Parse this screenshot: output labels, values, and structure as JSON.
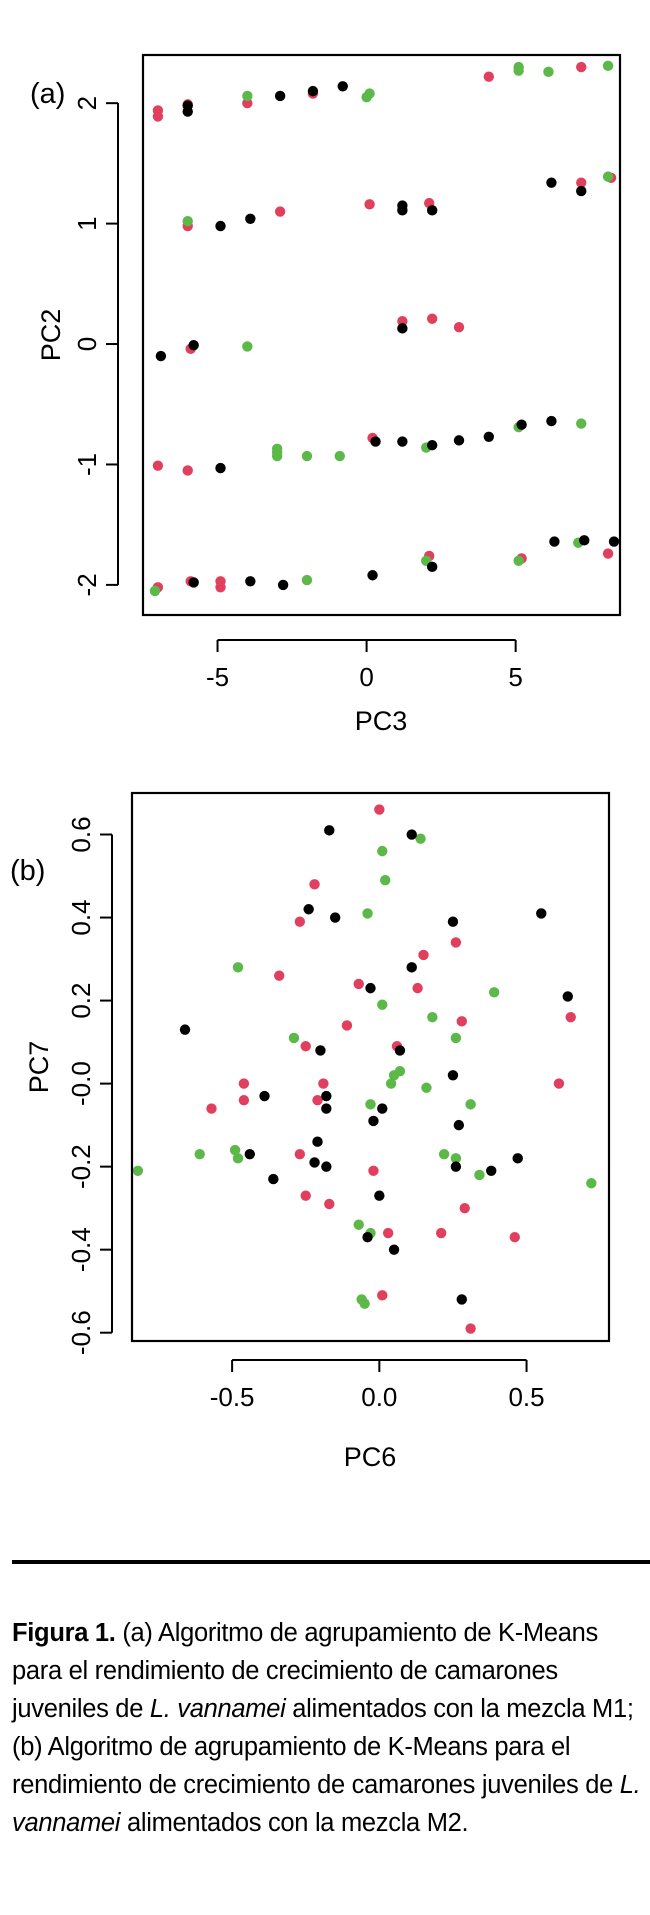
{
  "colors": {
    "cluster1": "#e0405e",
    "cluster2": "#5cb848",
    "cluster3": "#000000"
  },
  "chart_data": [
    {
      "type": "scatter",
      "panel_label": "(a)",
      "title": "",
      "xlabel": "PC3",
      "ylabel": "PC2",
      "xlim": [
        -7.5,
        8.5
      ],
      "ylim": [
        -2.25,
        2.4
      ],
      "xticks": [
        -5,
        0,
        5
      ],
      "xtick_labels": [
        "-5",
        "0",
        "5"
      ],
      "yticks": [
        -2,
        -1,
        0,
        1,
        2
      ],
      "ytick_labels": [
        "-2",
        "-1",
        "0",
        "1",
        "2"
      ],
      "grid": false,
      "legend": "none",
      "series": [
        {
          "name": "cluster-red",
          "color": "#e0405e",
          "points": [
            [
              -7.0,
              1.94
            ],
            [
              -7.0,
              1.89
            ],
            [
              -6.0,
              1.99
            ],
            [
              -4.0,
              2.0
            ],
            [
              -1.8,
              2.08
            ],
            [
              4.1,
              2.22
            ],
            [
              7.2,
              2.3
            ],
            [
              -6.0,
              0.98
            ],
            [
              -2.9,
              1.1
            ],
            [
              0.1,
              1.16
            ],
            [
              2.1,
              1.17
            ],
            [
              8.2,
              1.38
            ],
            [
              7.2,
              1.34
            ],
            [
              1.2,
              0.19
            ],
            [
              2.2,
              0.21
            ],
            [
              3.1,
              0.14
            ],
            [
              -5.9,
              -0.04
            ],
            [
              -7.0,
              -1.01
            ],
            [
              -6.0,
              -1.05
            ],
            [
              0.2,
              -0.78
            ],
            [
              -5.9,
              -1.97
            ],
            [
              -4.9,
              -1.97
            ],
            [
              -4.9,
              -2.02
            ],
            [
              -7.0,
              -2.02
            ],
            [
              2.1,
              -1.76
            ],
            [
              5.2,
              -1.78
            ],
            [
              8.1,
              -1.74
            ]
          ]
        },
        {
          "name": "cluster-green",
          "color": "#5cb848",
          "points": [
            [
              -4.0,
              2.06
            ],
            [
              0.1,
              2.08
            ],
            [
              0.0,
              2.05
            ],
            [
              5.1,
              2.3
            ],
            [
              5.1,
              2.27
            ],
            [
              6.1,
              2.26
            ],
            [
              8.1,
              2.31
            ],
            [
              -6.0,
              1.02
            ],
            [
              8.1,
              1.39
            ],
            [
              -4.0,
              -0.02
            ],
            [
              -3.0,
              -0.87
            ],
            [
              -3.0,
              -0.9
            ],
            [
              -3.0,
              -0.93
            ],
            [
              -2.0,
              -0.93
            ],
            [
              -0.9,
              -0.93
            ],
            [
              2.0,
              -0.86
            ],
            [
              5.1,
              -0.69
            ],
            [
              7.2,
              -0.66
            ],
            [
              -7.1,
              -2.05
            ],
            [
              -2.0,
              -1.96
            ],
            [
              2.0,
              -1.8
            ],
            [
              5.1,
              -1.8
            ],
            [
              7.1,
              -1.65
            ]
          ]
        },
        {
          "name": "cluster-black",
          "color": "#000000",
          "points": [
            [
              -6.0,
              1.98
            ],
            [
              -6.0,
              1.93
            ],
            [
              -2.9,
              2.06
            ],
            [
              -1.8,
              2.1
            ],
            [
              -0.8,
              2.14
            ],
            [
              -4.9,
              0.98
            ],
            [
              -3.9,
              1.04
            ],
            [
              1.2,
              1.15
            ],
            [
              1.2,
              1.11
            ],
            [
              2.2,
              1.11
            ],
            [
              6.2,
              1.34
            ],
            [
              7.2,
              1.27
            ],
            [
              -6.9,
              -0.1
            ],
            [
              -5.8,
              -0.01
            ],
            [
              1.2,
              0.13
            ],
            [
              -4.9,
              -1.03
            ],
            [
              0.3,
              -0.81
            ],
            [
              1.2,
              -0.81
            ],
            [
              2.2,
              -0.84
            ],
            [
              3.1,
              -0.8
            ],
            [
              4.1,
              -0.77
            ],
            [
              5.2,
              -0.67
            ],
            [
              6.2,
              -0.64
            ],
            [
              -5.8,
              -1.98
            ],
            [
              -3.9,
              -1.97
            ],
            [
              -2.8,
              -2.0
            ],
            [
              0.2,
              -1.92
            ],
            [
              2.2,
              -1.85
            ],
            [
              6.3,
              -1.64
            ],
            [
              7.3,
              -1.63
            ],
            [
              8.3,
              -1.64
            ]
          ]
        }
      ]
    },
    {
      "type": "scatter",
      "panel_label": "(b)",
      "title": "",
      "xlabel": "PC6",
      "ylabel": "PC7",
      "xlim": [
        -0.84,
        0.78
      ],
      "ylim": [
        -0.62,
        0.7
      ],
      "xticks": [
        -0.5,
        0.0,
        0.5
      ],
      "xtick_labels": [
        "-0.5",
        "0.0",
        "0.5"
      ],
      "yticks": [
        -0.6,
        -0.4,
        -0.2,
        0.0,
        0.2,
        0.4,
        0.6
      ],
      "ytick_labels": [
        "-0.6",
        "-0.4",
        "-0.2",
        "-0.0",
        "0.2",
        "0.4",
        "0.6"
      ],
      "grid": false,
      "legend": "none",
      "series": [
        {
          "name": "cluster-red",
          "color": "#e0405e",
          "points": [
            [
              0.0,
              0.66
            ],
            [
              -0.22,
              0.48
            ],
            [
              -0.27,
              0.39
            ],
            [
              0.26,
              0.34
            ],
            [
              -0.34,
              0.26
            ],
            [
              0.15,
              0.31
            ],
            [
              -0.07,
              0.24
            ],
            [
              -0.11,
              0.14
            ],
            [
              -0.25,
              0.09
            ],
            [
              0.28,
              0.15
            ],
            [
              0.65,
              0.16
            ],
            [
              0.06,
              0.09
            ],
            [
              -0.46,
              0.0
            ],
            [
              -0.19,
              0.0
            ],
            [
              0.61,
              0.0
            ],
            [
              -0.57,
              -0.06
            ],
            [
              -0.46,
              -0.04
            ],
            [
              -0.21,
              -0.04
            ],
            [
              -0.27,
              -0.17
            ],
            [
              -0.25,
              -0.27
            ],
            [
              -0.17,
              -0.29
            ],
            [
              -0.02,
              -0.21
            ],
            [
              0.03,
              -0.36
            ],
            [
              0.21,
              -0.36
            ],
            [
              0.29,
              -0.3
            ],
            [
              0.46,
              -0.37
            ],
            [
              0.01,
              -0.51
            ],
            [
              0.31,
              -0.59
            ],
            [
              0.13,
              0.23
            ]
          ]
        },
        {
          "name": "cluster-green",
          "color": "#5cb848",
          "points": [
            [
              0.01,
              0.56
            ],
            [
              0.14,
              0.59
            ],
            [
              0.02,
              0.49
            ],
            [
              -0.04,
              0.41
            ],
            [
              -0.48,
              0.28
            ],
            [
              0.39,
              0.22
            ],
            [
              0.01,
              0.19
            ],
            [
              0.18,
              0.16
            ],
            [
              -0.29,
              0.11
            ],
            [
              0.26,
              0.11
            ],
            [
              0.05,
              0.02
            ],
            [
              0.07,
              0.03
            ],
            [
              0.04,
              0.0
            ],
            [
              -0.03,
              -0.05
            ],
            [
              0.16,
              -0.01
            ],
            [
              0.31,
              -0.05
            ],
            [
              -0.82,
              -0.21
            ],
            [
              -0.61,
              -0.17
            ],
            [
              -0.49,
              -0.16
            ],
            [
              -0.48,
              -0.18
            ],
            [
              0.22,
              -0.17
            ],
            [
              0.26,
              -0.18
            ],
            [
              0.34,
              -0.22
            ],
            [
              0.72,
              -0.24
            ],
            [
              -0.07,
              -0.34
            ],
            [
              -0.03,
              -0.36
            ],
            [
              -0.06,
              -0.52
            ],
            [
              -0.05,
              -0.53
            ]
          ]
        },
        {
          "name": "cluster-black",
          "color": "#000000",
          "points": [
            [
              -0.17,
              0.61
            ],
            [
              0.11,
              0.6
            ],
            [
              -0.24,
              0.42
            ],
            [
              -0.15,
              0.4
            ],
            [
              0.25,
              0.39
            ],
            [
              0.55,
              0.41
            ],
            [
              0.11,
              0.28
            ],
            [
              -0.03,
              0.23
            ],
            [
              0.64,
              0.21
            ],
            [
              -0.66,
              0.13
            ],
            [
              -0.2,
              0.08
            ],
            [
              0.07,
              0.08
            ],
            [
              0.25,
              0.02
            ],
            [
              -0.39,
              -0.03
            ],
            [
              -0.18,
              -0.03
            ],
            [
              -0.18,
              -0.06
            ],
            [
              0.01,
              -0.06
            ],
            [
              -0.02,
              -0.09
            ],
            [
              0.27,
              -0.1
            ],
            [
              -0.44,
              -0.17
            ],
            [
              -0.21,
              -0.14
            ],
            [
              -0.22,
              -0.19
            ],
            [
              -0.18,
              -0.2
            ],
            [
              0.26,
              -0.2
            ],
            [
              -0.36,
              -0.23
            ],
            [
              0.38,
              -0.21
            ],
            [
              0.47,
              -0.18
            ],
            [
              0.0,
              -0.27
            ],
            [
              -0.04,
              -0.37
            ],
            [
              0.05,
              -0.4
            ],
            [
              0.28,
              -0.52
            ]
          ]
        }
      ]
    }
  ],
  "caption": {
    "lead": "Figura 1.",
    "t1": " (a) Algoritmo de agrupamiento de K-Means para el rendimiento de crecimiento de camarones juveniles de ",
    "species1": "L. vannamei",
    "t2": " alimentados con la mezcla M1; (b) Algoritmo de agrupamiento de K-Means para el rendimiento de crecimiento de camarones juveniles de ",
    "species2": "L. vannamei",
    "t3": " alimentados con la mezcla M2."
  }
}
